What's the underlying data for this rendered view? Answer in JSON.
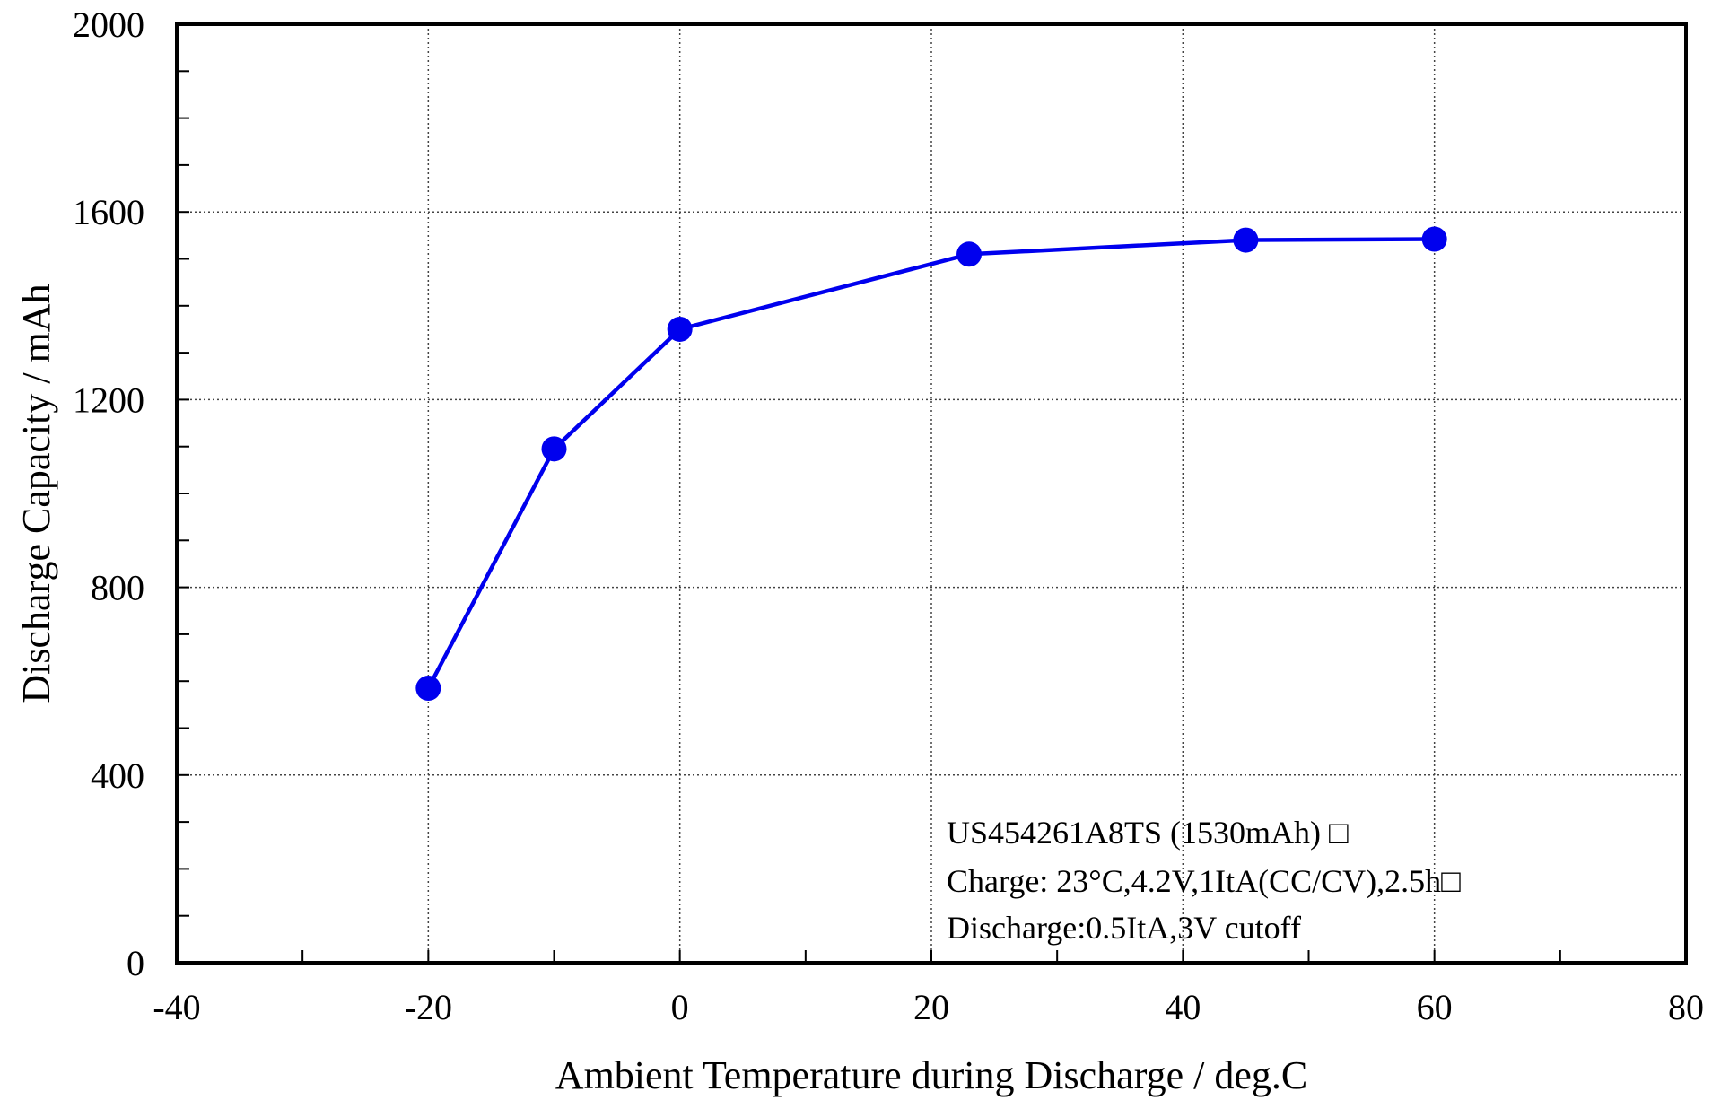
{
  "chart_data": {
    "type": "line",
    "title": "",
    "xlabel": "Ambient Temperature during Discharge / deg.C",
    "ylabel": "Discharge Capacity / mAh",
    "xlim": [
      -40,
      80
    ],
    "ylim": [
      0,
      2000
    ],
    "xticks": [
      -40,
      -20,
      0,
      20,
      40,
      60,
      80
    ],
    "yticks": [
      0,
      400,
      800,
      1200,
      1600,
      2000
    ],
    "grid": true,
    "series": [
      {
        "color": "#0000ee",
        "x": [
          -20,
          -10,
          0,
          23,
          45,
          60
        ],
        "y": [
          585,
          1095,
          1350,
          1510,
          1540,
          1542
        ]
      }
    ],
    "annotations": [
      "US454261A8TS (1530mAh) □",
      "Charge: 23°C,4.2V,1ItA(CC/CV),2.5h□",
      "Discharge:0.5ItA,3V cutoff"
    ]
  }
}
